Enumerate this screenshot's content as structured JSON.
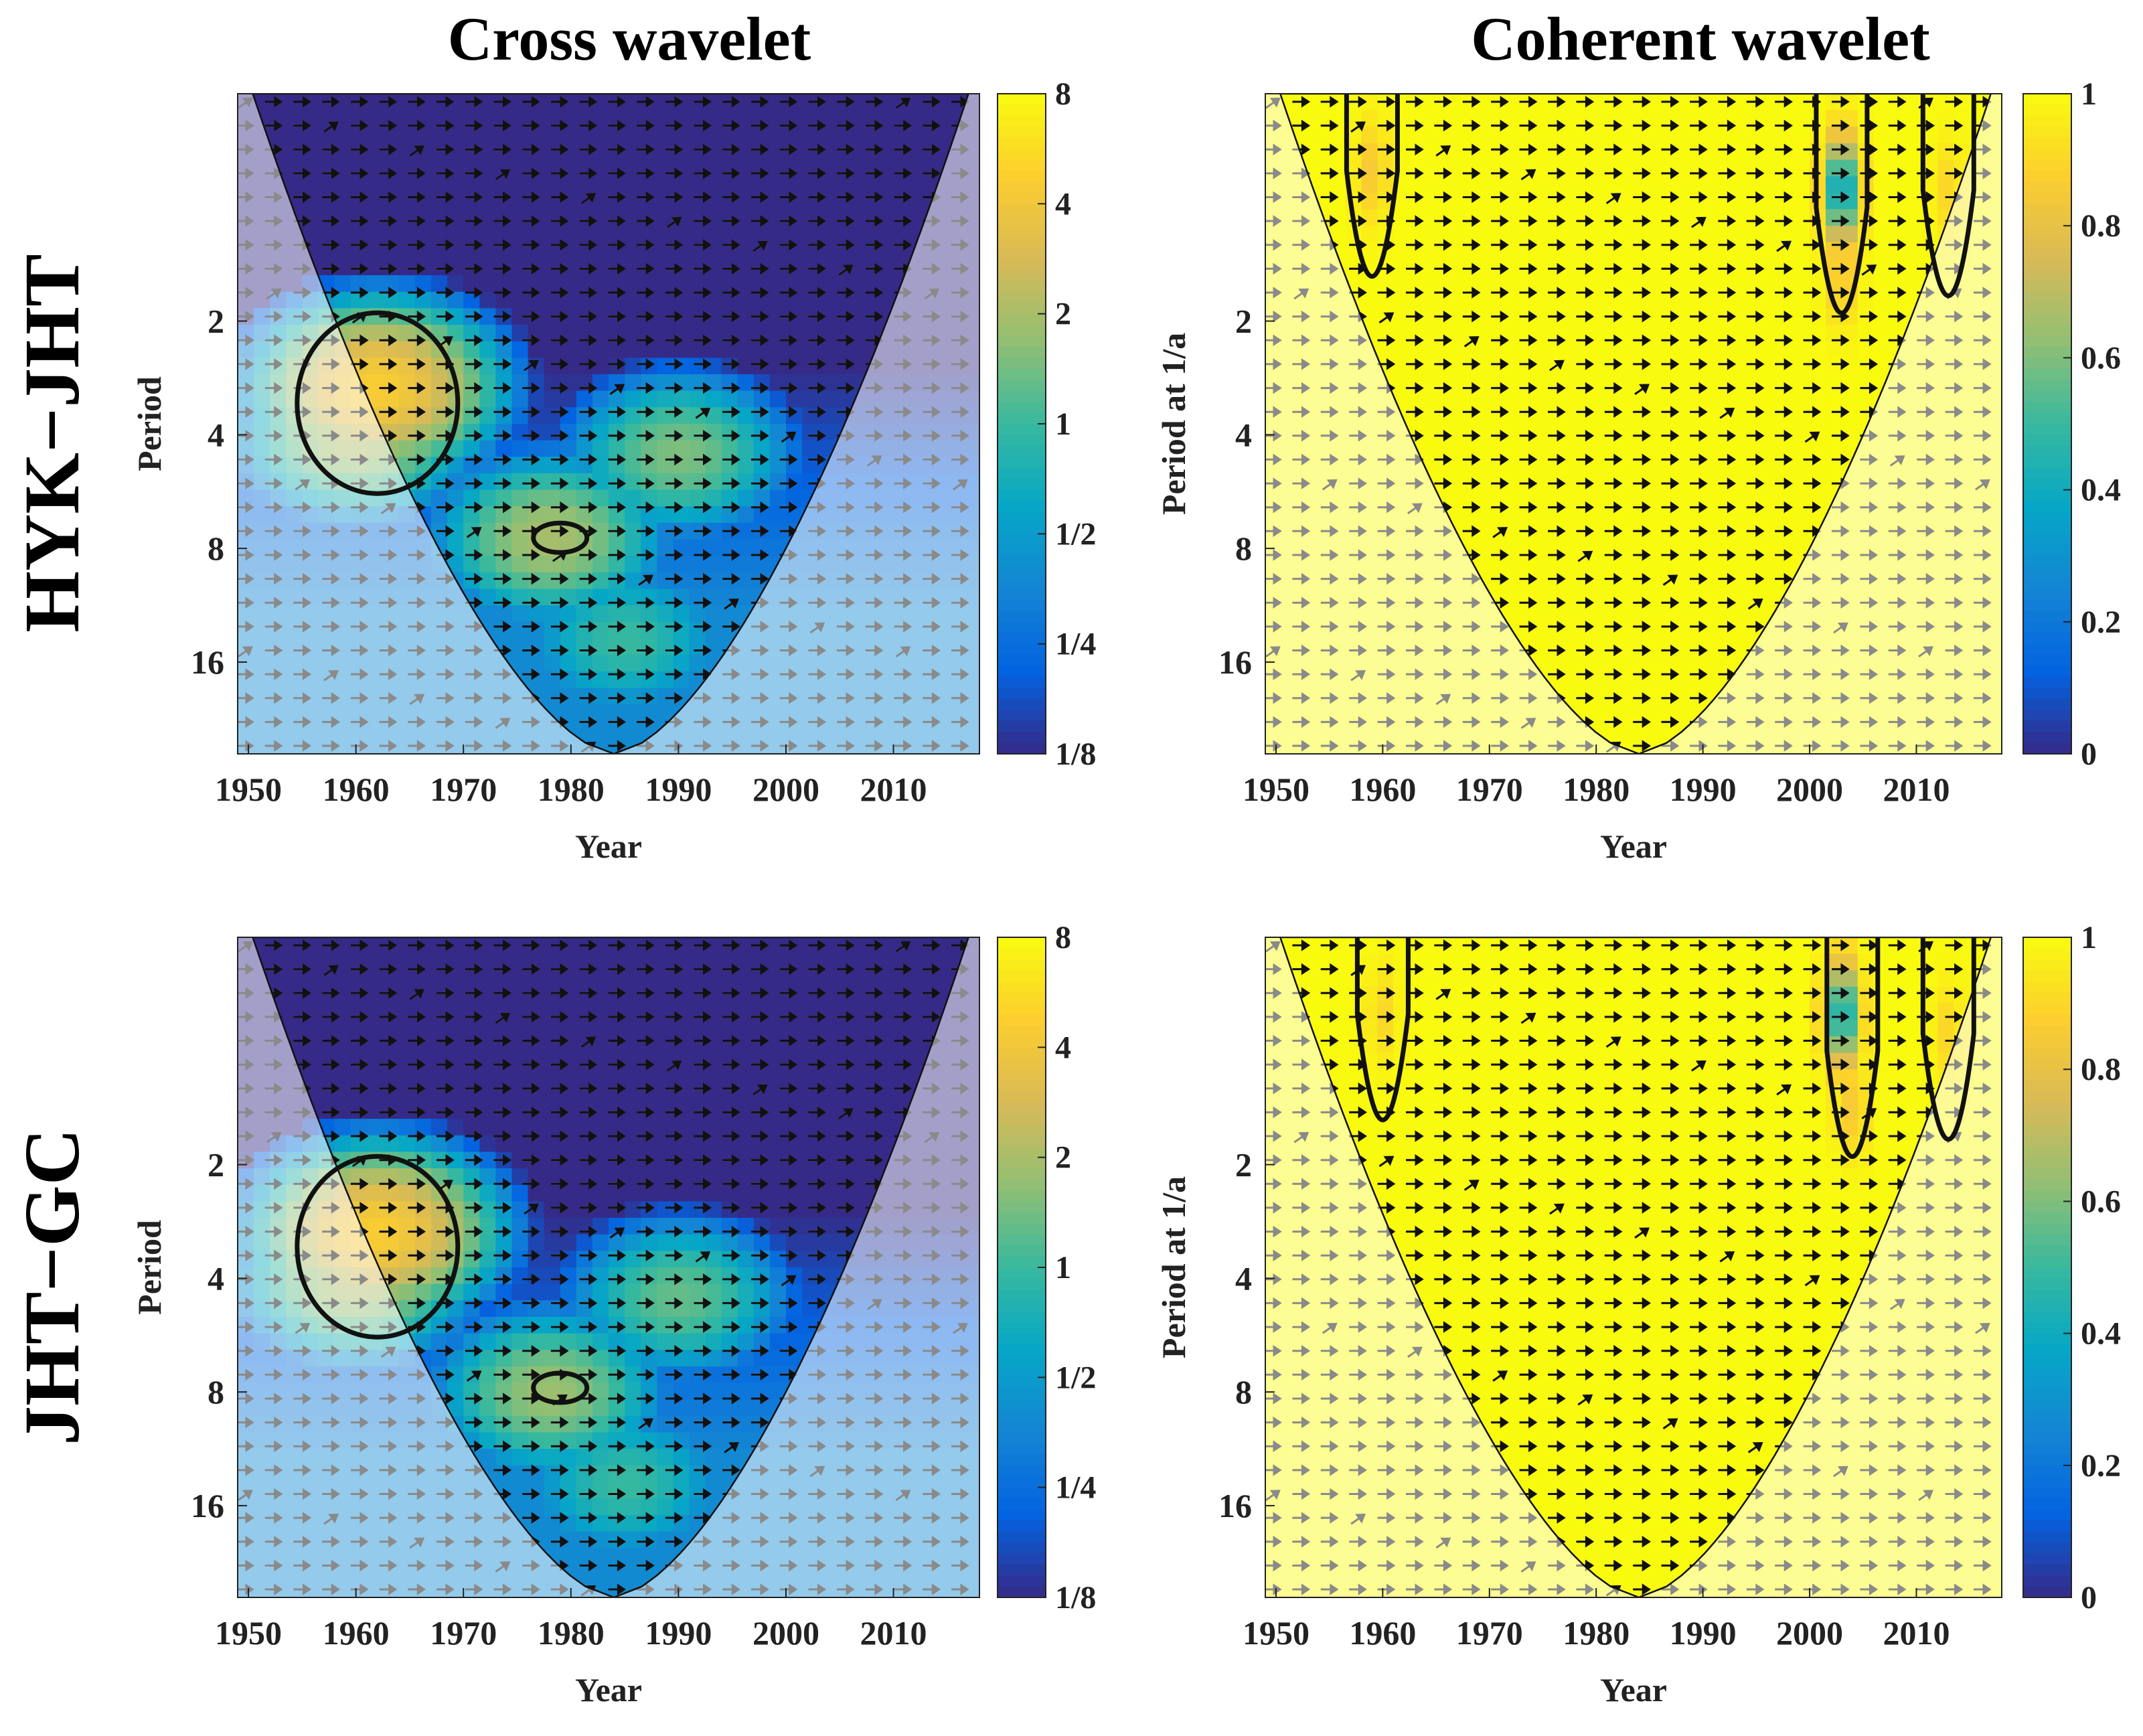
{
  "column_titles": {
    "left": "Cross wavelet",
    "right": "Coherent wavelet"
  },
  "row_titles": {
    "top": "HYK−JHT",
    "bottom": "JHT−GC"
  },
  "colors": {
    "parula": [
      "#352a87",
      "#0363e1",
      "#1485d4",
      "#06a7c6",
      "#38b99e",
      "#92bf73",
      "#d9ba56",
      "#fcce2e",
      "#f9fb0e"
    ],
    "arrow_inside": "#111111",
    "arrow_outside": "#8a8a8a",
    "contour": "#111111"
  },
  "chart_data": [
    {
      "name": "cross-wavelet-hyk-jht",
      "type": "heatmap",
      "title": "Cross wavelet",
      "row": "HYK−JHT",
      "xlabel": "Year",
      "ylabel": "Period",
      "xlim": [
        1949,
        2018
      ],
      "ylim_period": [
        0.5,
        28
      ],
      "x_ticks": [
        "1950",
        "1960",
        "1970",
        "1980",
        "1990",
        "2000",
        "2010"
      ],
      "x_tick_values": [
        1950,
        1960,
        1970,
        1980,
        1990,
        2000,
        2010
      ],
      "y_ticks": [
        "2",
        "4",
        "8",
        "16"
      ],
      "y_tick_values": [
        2,
        4,
        8,
        16
      ],
      "colorbar": {
        "scale": "log2",
        "labels": [
          "8",
          "4",
          "2",
          "1",
          "1/2",
          "1/4",
          "1/8"
        ],
        "values": [
          8,
          4,
          2,
          1,
          0.5,
          0.25,
          0.125
        ],
        "range": [
          0.125,
          8
        ]
      },
      "cone_of_influence_apex": [
        1984,
        28
      ],
      "features": [
        {
          "year": 1962,
          "period": 3.0,
          "power": 4.5
        },
        {
          "year": 1960,
          "period": 4.0,
          "power": 2.2
        },
        {
          "year": 1978,
          "period": 7.5,
          "power": 2.0
        },
        {
          "year": 1990,
          "period": 4.5,
          "power": 1.5
        },
        {
          "year": 1985,
          "period": 14,
          "power": 1.0
        },
        {
          "year": 1975,
          "period": 1.5,
          "power": 0.125
        }
      ],
      "significant_regions": [
        {
          "center_year": 1962,
          "center_period": 3.3
        },
        {
          "center_year": 1979,
          "center_period": 7.5
        }
      ]
    },
    {
      "name": "coherent-wavelet-hyk-jht",
      "type": "heatmap",
      "title": "Coherent wavelet",
      "row": "HYK−JHT",
      "xlabel": "Year",
      "ylabel": "Period at 1/a",
      "xlim": [
        1949,
        2018
      ],
      "ylim_period": [
        0.5,
        28
      ],
      "x_ticks": [
        "1950",
        "1960",
        "1970",
        "1980",
        "1990",
        "2000",
        "2010"
      ],
      "x_tick_values": [
        1950,
        1960,
        1970,
        1980,
        1990,
        2000,
        2010
      ],
      "y_ticks": [
        "2",
        "4",
        "8",
        "16"
      ],
      "y_tick_values": [
        2,
        4,
        8,
        16
      ],
      "colorbar": {
        "scale": "linear",
        "labels": [
          "1",
          "0.8",
          "0.6",
          "0.4",
          "0.2",
          "0"
        ],
        "values": [
          1,
          0.8,
          0.6,
          0.4,
          0.2,
          0
        ],
        "range": [
          0,
          1
        ]
      },
      "cone_of_influence_apex": [
        1984,
        28
      ],
      "features": [
        {
          "year": 1959,
          "period": 0.8,
          "coherence": 0.85
        },
        {
          "year": 2003,
          "period": 0.9,
          "coherence": 0.3
        },
        {
          "year": 2003,
          "period": 1.5,
          "coherence": 0.85
        },
        {
          "year": 2013,
          "period": 0.9,
          "coherence": 0.9
        }
      ],
      "significant_regions": [
        {
          "center_year": 1959,
          "center_period": 0.8
        },
        {
          "center_year": 2003,
          "center_period": 1.0
        },
        {
          "center_year": 2013,
          "center_period": 0.9
        }
      ]
    },
    {
      "name": "cross-wavelet-jht-gc",
      "type": "heatmap",
      "title": "Cross wavelet",
      "row": "JHT−GC",
      "xlabel": "Year",
      "ylabel": "Period",
      "xlim": [
        1949,
        2018
      ],
      "ylim_period": [
        0.5,
        28
      ],
      "x_ticks": [
        "1950",
        "1960",
        "1970",
        "1980",
        "1990",
        "2000",
        "2010"
      ],
      "x_tick_values": [
        1950,
        1960,
        1970,
        1980,
        1990,
        2000,
        2010
      ],
      "y_ticks": [
        "2",
        "4",
        "8",
        "16"
      ],
      "y_tick_values": [
        2,
        4,
        8,
        16
      ],
      "colorbar": {
        "scale": "log2",
        "labels": [
          "8",
          "4",
          "2",
          "1",
          "1/2",
          "1/4",
          "1/8"
        ],
        "values": [
          8,
          4,
          2,
          1,
          0.5,
          0.25,
          0.125
        ],
        "range": [
          0.125,
          8
        ]
      },
      "cone_of_influence_apex": [
        1984,
        28
      ],
      "features": [
        {
          "year": 1962,
          "period": 3.0,
          "power": 4.5
        },
        {
          "year": 1960,
          "period": 4.0,
          "power": 2.2
        },
        {
          "year": 1978,
          "period": 8.0,
          "power": 1.8
        },
        {
          "year": 1990,
          "period": 4.5,
          "power": 1.3
        },
        {
          "year": 1985,
          "period": 14,
          "power": 1.0
        },
        {
          "year": 1975,
          "period": 1.5,
          "power": 0.125
        }
      ],
      "significant_regions": [
        {
          "center_year": 1962,
          "center_period": 3.3
        },
        {
          "center_year": 1979,
          "center_period": 7.8
        }
      ]
    },
    {
      "name": "coherent-wavelet-jht-gc",
      "type": "heatmap",
      "title": "Coherent wavelet",
      "row": "JHT−GC",
      "xlabel": "Year",
      "ylabel": "Period at 1/a",
      "xlim": [
        1949,
        2018
      ],
      "ylim_period": [
        0.5,
        28
      ],
      "x_ticks": [
        "1950",
        "1960",
        "1970",
        "1980",
        "1990",
        "2000",
        "2010"
      ],
      "x_tick_values": [
        1950,
        1960,
        1970,
        1980,
        1990,
        2000,
        2010
      ],
      "y_ticks": [
        "2",
        "4",
        "8",
        "16"
      ],
      "y_tick_values": [
        2,
        4,
        8,
        16
      ],
      "colorbar": {
        "scale": "linear",
        "labels": [
          "1",
          "0.8",
          "0.6",
          "0.4",
          "0.2",
          "0"
        ],
        "values": [
          1,
          0.8,
          0.6,
          0.4,
          0.2,
          0
        ],
        "range": [
          0,
          1
        ]
      },
      "cone_of_influence_apex": [
        1984,
        28
      ],
      "features": [
        {
          "year": 1960,
          "period": 0.8,
          "coherence": 0.9
        },
        {
          "year": 2003,
          "period": 0.8,
          "coherence": 0.35
        },
        {
          "year": 2004,
          "period": 1.4,
          "coherence": 0.85
        },
        {
          "year": 2013,
          "period": 0.9,
          "coherence": 0.9
        }
      ],
      "significant_regions": [
        {
          "center_year": 1960,
          "center_period": 0.8
        },
        {
          "center_year": 2004,
          "center_period": 1.0
        },
        {
          "center_year": 2013,
          "center_period": 0.9
        }
      ]
    }
  ]
}
